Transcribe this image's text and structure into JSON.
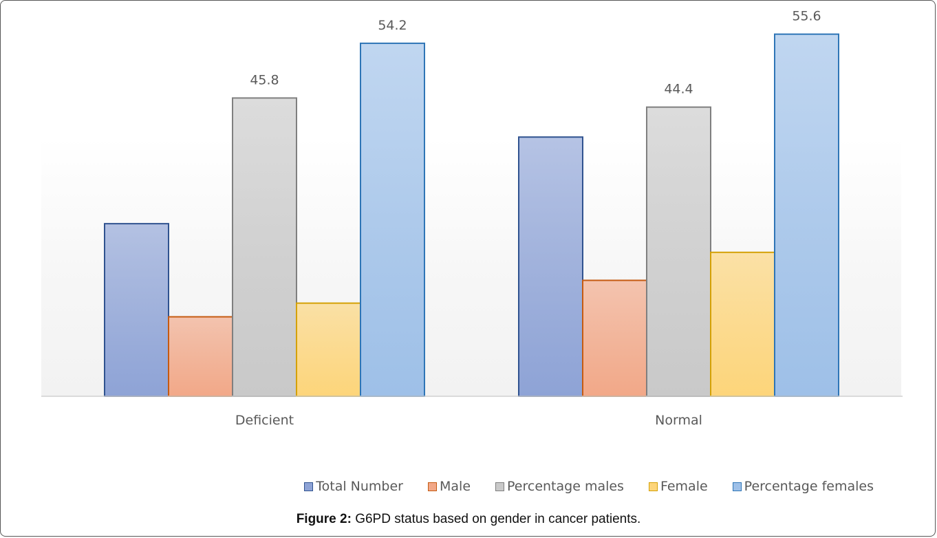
{
  "chart_data": {
    "type": "bar",
    "categories": [
      "Deficient",
      "Normal"
    ],
    "ylim": [
      0,
      60
    ],
    "grid": false,
    "legend_position": "bottom",
    "series": [
      {
        "name": "Total Number",
        "values": [
          26.5,
          39.8
        ],
        "labels": [
          null,
          null
        ],
        "fill": "#8ea3d6",
        "stroke": "#2f528f"
      },
      {
        "name": "Male",
        "values": [
          12.2,
          17.8
        ],
        "labels": [
          null,
          null
        ],
        "fill": "#f2a888",
        "stroke": "#c55a11"
      },
      {
        "name": "Percentage males",
        "values": [
          45.8,
          44.4
        ],
        "labels": [
          "45.8",
          "44.4"
        ],
        "fill": "#c9c9c9",
        "stroke": "#7f7f7f"
      },
      {
        "name": "Female",
        "values": [
          14.3,
          22.1
        ],
        "labels": [
          null,
          null
        ],
        "fill": "#fdd57a",
        "stroke": "#d4a106"
      },
      {
        "name": "Percentage females",
        "values": [
          54.2,
          55.6
        ],
        "labels": [
          "54.2",
          "55.6"
        ],
        "fill": "#9ec0e8",
        "stroke": "#2e75b6"
      }
    ]
  },
  "caption": {
    "label": "Figure 2:",
    "text": " G6PD status based on gender in cancer patients."
  }
}
